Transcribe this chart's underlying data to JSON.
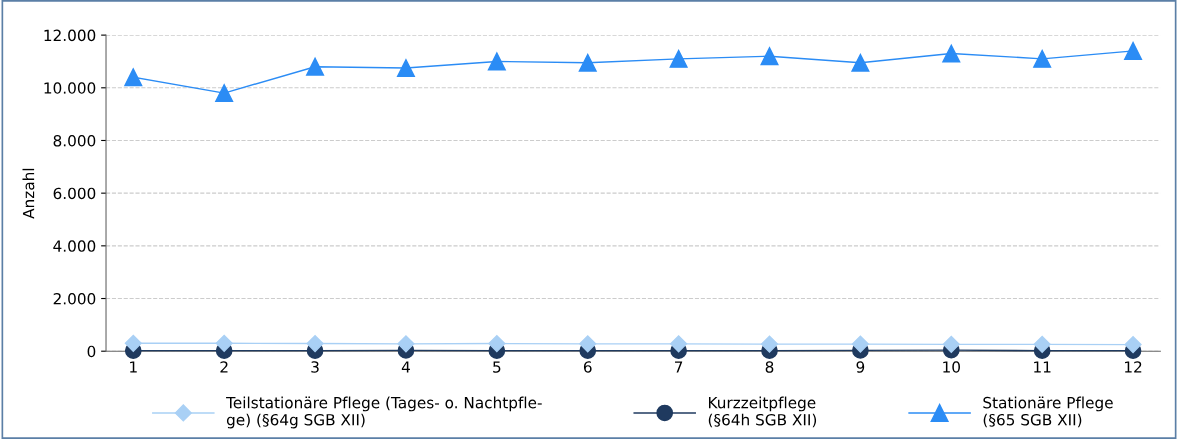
{
  "chart_data": {
    "type": "line",
    "ylabel": "Anzahl",
    "categories": [
      "1",
      "2",
      "3",
      "4",
      "5",
      "6",
      "7",
      "8",
      "9",
      "10",
      "11",
      "12"
    ],
    "series": [
      {
        "name": "Teilstationäre Pflege (Tages- o. Nachtpfle-\nge) (§64g SGB XII)",
        "color": "#a9d0f5",
        "marker": "diamond",
        "values": [
          300,
          300,
          290,
          280,
          290,
          280,
          280,
          270,
          270,
          260,
          260,
          250
        ]
      },
      {
        "name": "Kurzzeitpflege\n(§64h SGB XII)",
        "color": "#1f3a5f",
        "marker": "circle",
        "values": [
          20,
          20,
          20,
          30,
          20,
          20,
          20,
          20,
          30,
          40,
          20,
          20
        ]
      },
      {
        "name": "Stationäre Pflege\n(§65 SGB XII)",
        "color": "#2b8cf5",
        "marker": "triangle",
        "values": [
          10400,
          9800,
          10800,
          10750,
          11000,
          10950,
          11100,
          11200,
          10950,
          11300,
          11100,
          11400
        ]
      }
    ],
    "ylim": [
      0,
      12000
    ],
    "yticks": [
      {
        "value": 0,
        "label": "0"
      },
      {
        "value": 2000,
        "label": "2.000"
      },
      {
        "value": 4000,
        "label": "4.000"
      },
      {
        "value": 6000,
        "label": "6.000"
      },
      {
        "value": 8000,
        "label": "8.000"
      },
      {
        "value": 10000,
        "label": "10.000"
      },
      {
        "value": 12000,
        "label": "12.000"
      }
    ],
    "grid": "y",
    "legend": "bottom"
  }
}
